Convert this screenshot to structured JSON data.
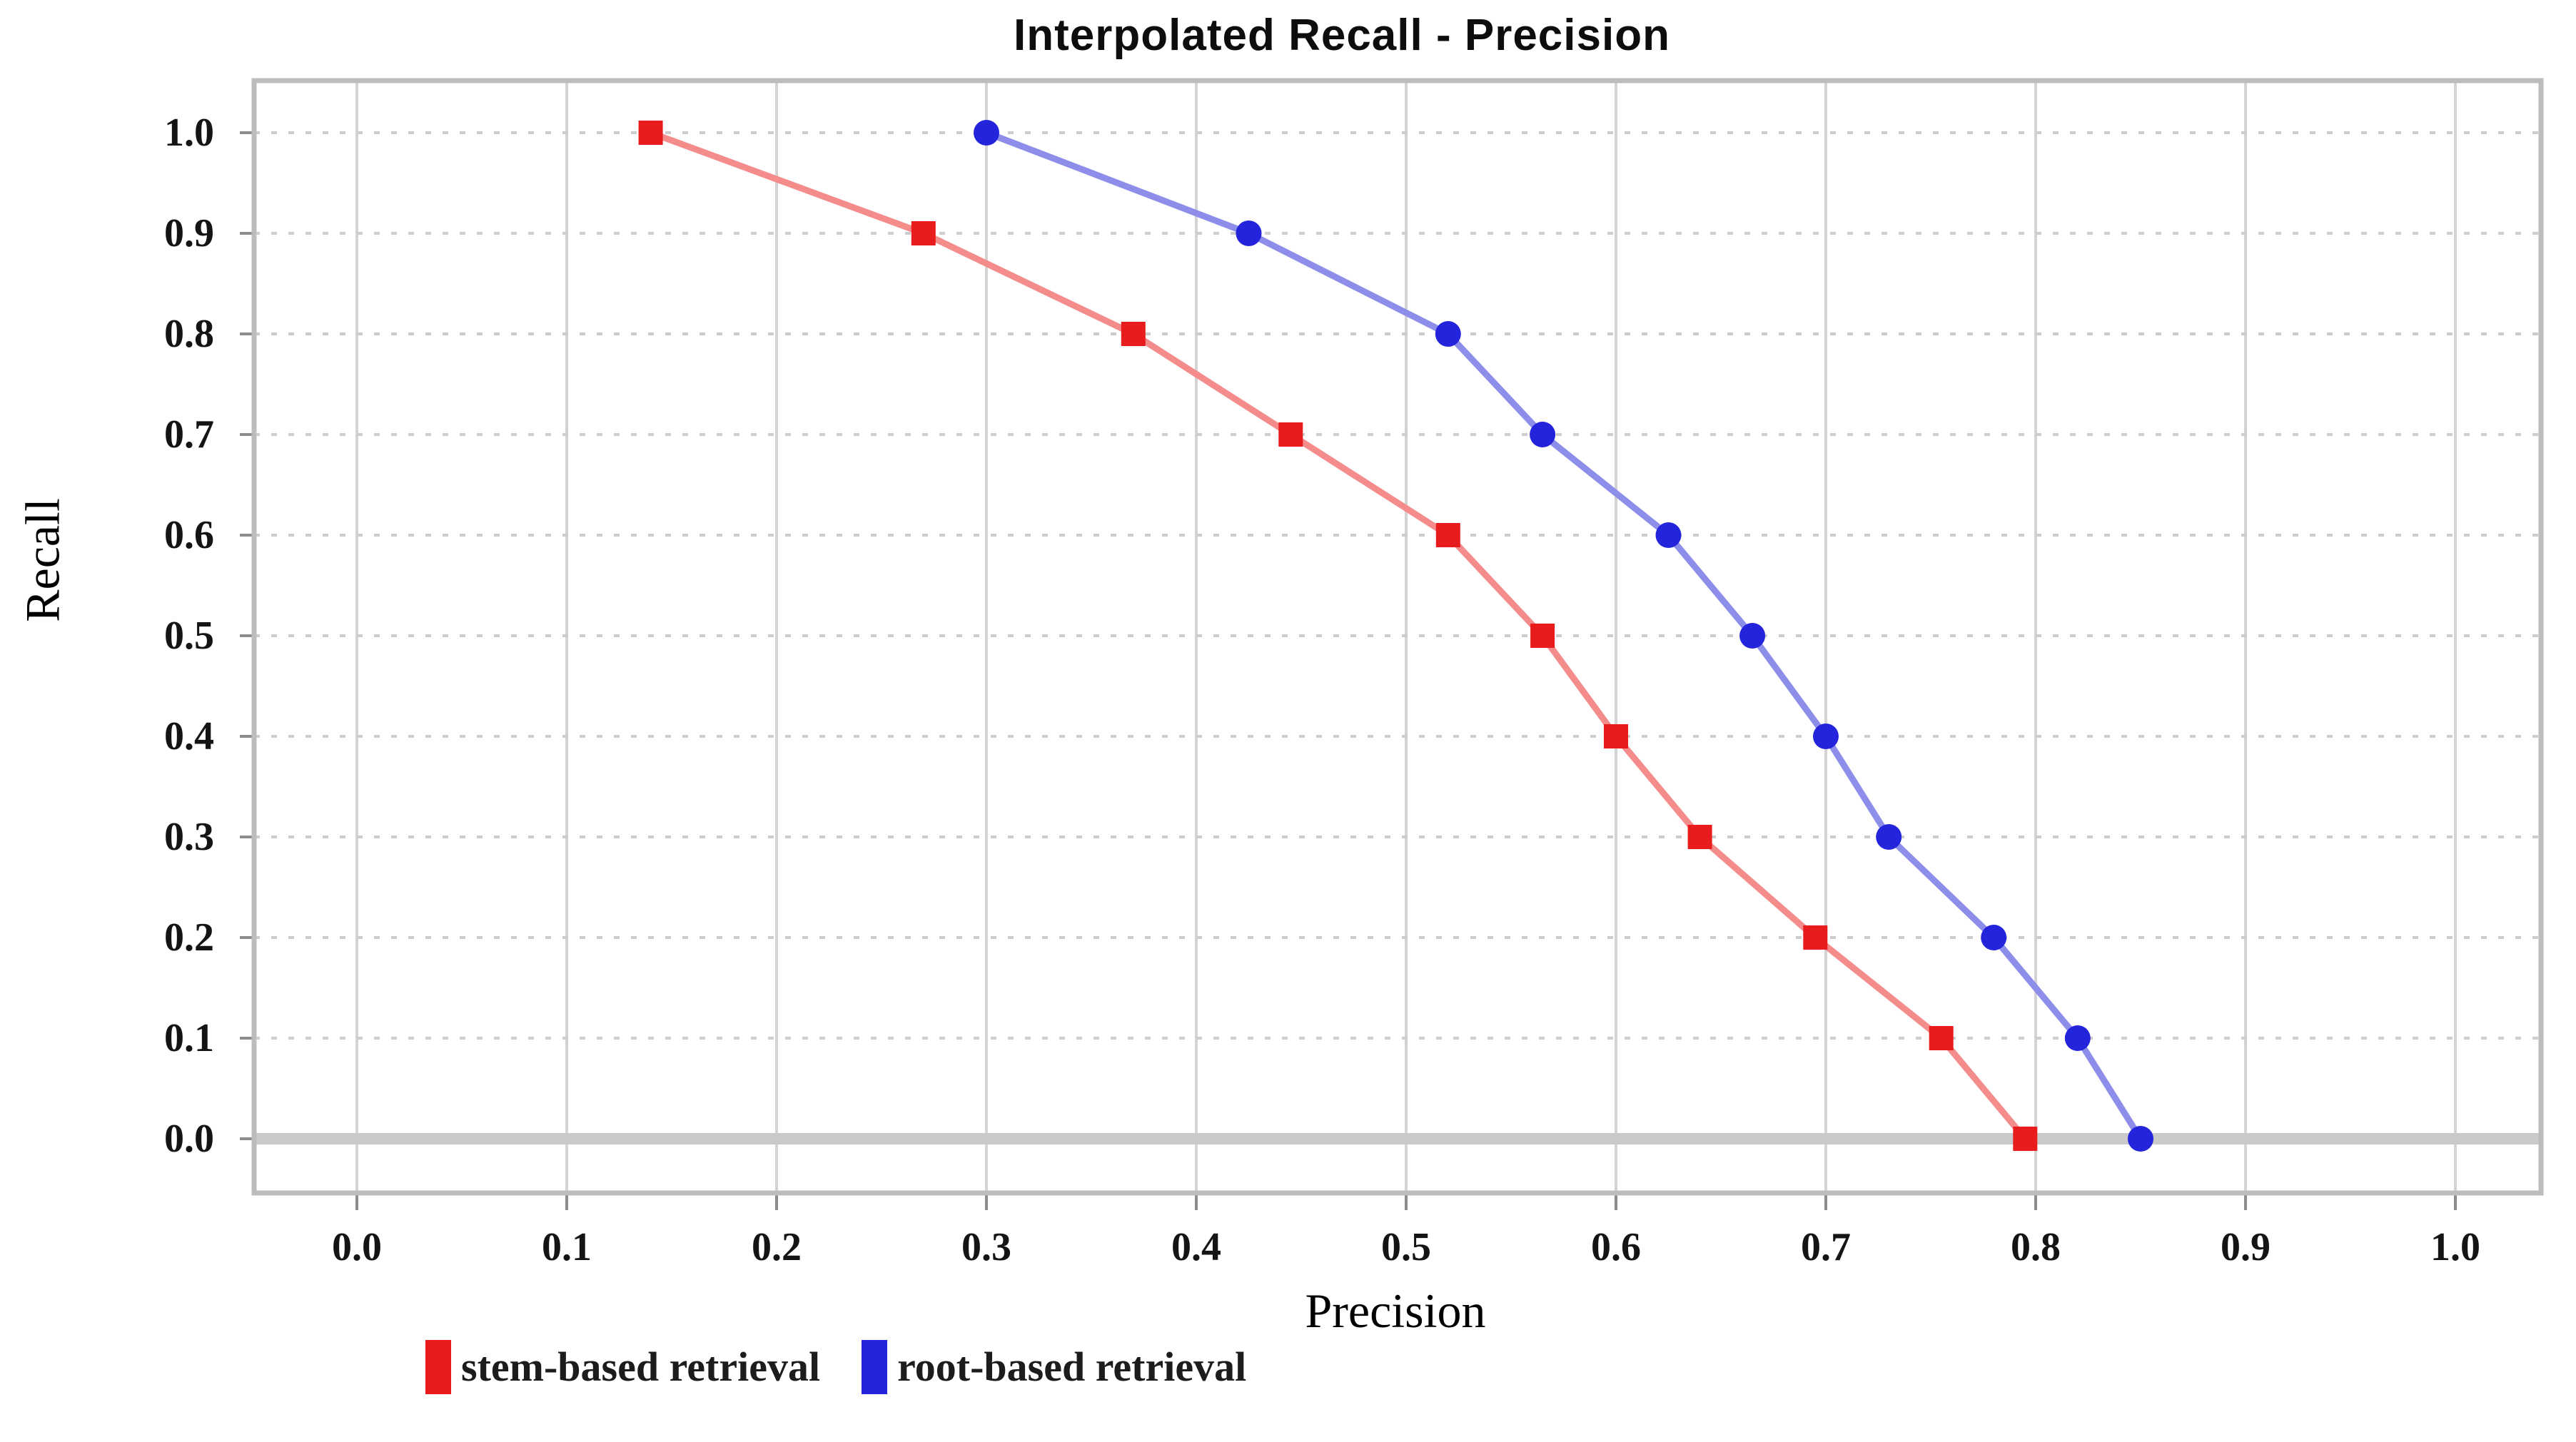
{
  "chart_data": {
    "type": "line",
    "title": "Interpolated Recall - Precision",
    "xlabel": "Precision",
    "ylabel": "Recall",
    "x_ticks": [
      "0.0",
      "0.1",
      "0.2",
      "0.3",
      "0.4",
      "0.5",
      "0.6",
      "0.7",
      "0.8",
      "0.9",
      "1.0"
    ],
    "y_ticks": [
      "0.0",
      "0.1",
      "0.2",
      "0.3",
      "0.4",
      "0.5",
      "0.6",
      "0.7",
      "0.8",
      "0.9",
      "1.0"
    ],
    "xlim": [
      -0.049,
      1.041
    ],
    "ylim": [
      -0.054,
      1.052
    ],
    "grid": {
      "vertical": "solid",
      "horizontal": "dotted"
    },
    "legend_position": "bottom-left",
    "frame_color": "#bcbcbc",
    "grid_color_vertical": "#d3d3d3",
    "grid_color_horizontal": "#cccccc",
    "zero_axis_color": "#c9c9c9",
    "tick_mark_color": "#8c8c8c",
    "series": [
      {
        "name": "stem-based retrieval",
        "color": "#e81c1c",
        "line_color": "#f58c8c",
        "marker": "square",
        "points": [
          {
            "precision": 0.14,
            "recall": 1.0
          },
          {
            "precision": 0.27,
            "recall": 0.9
          },
          {
            "precision": 0.37,
            "recall": 0.8
          },
          {
            "precision": 0.445,
            "recall": 0.7
          },
          {
            "precision": 0.52,
            "recall": 0.6
          },
          {
            "precision": 0.565,
            "recall": 0.5
          },
          {
            "precision": 0.6,
            "recall": 0.4
          },
          {
            "precision": 0.64,
            "recall": 0.3
          },
          {
            "precision": 0.695,
            "recall": 0.2
          },
          {
            "precision": 0.755,
            "recall": 0.1
          },
          {
            "precision": 0.795,
            "recall": 0.0
          }
        ]
      },
      {
        "name": "root-based retrieval",
        "color": "#2424dc",
        "line_color": "#8d8dea",
        "marker": "circle",
        "points": [
          {
            "precision": 0.3,
            "recall": 1.0
          },
          {
            "precision": 0.425,
            "recall": 0.9
          },
          {
            "precision": 0.52,
            "recall": 0.8
          },
          {
            "precision": 0.565,
            "recall": 0.7
          },
          {
            "precision": 0.625,
            "recall": 0.6
          },
          {
            "precision": 0.665,
            "recall": 0.5
          },
          {
            "precision": 0.7,
            "recall": 0.4
          },
          {
            "precision": 0.73,
            "recall": 0.3
          },
          {
            "precision": 0.78,
            "recall": 0.2
          },
          {
            "precision": 0.82,
            "recall": 0.1
          },
          {
            "precision": 0.85,
            "recall": 0.0
          }
        ]
      }
    ]
  }
}
